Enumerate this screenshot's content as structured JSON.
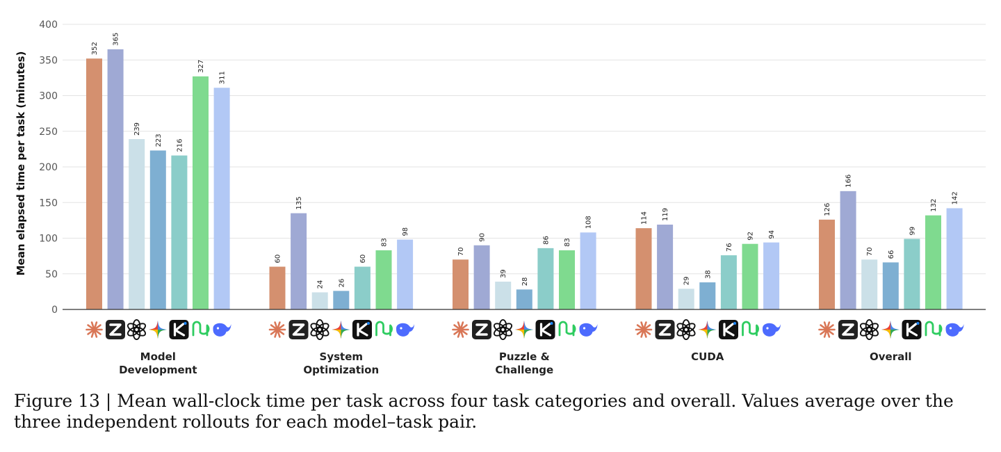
{
  "chart_data": {
    "type": "bar",
    "ylabel": "Mean elapsed time per task (minutes)",
    "ylim": [
      0,
      400
    ],
    "yticks": [
      0,
      50,
      100,
      150,
      200,
      250,
      300,
      350,
      400
    ],
    "grid": "horizontal",
    "categories": [
      [
        "Model",
        "Development"
      ],
      [
        "System",
        "Optimization"
      ],
      [
        "Puzzle &",
        "Challenge"
      ],
      [
        "CUDA"
      ],
      [
        "Overall"
      ]
    ],
    "series": [
      {
        "icon": "claude-icon",
        "color": "#d4906f",
        "values": [
          352,
          60,
          70,
          114,
          126
        ]
      },
      {
        "icon": "zhipu-z-icon",
        "color": "#9fa9d4",
        "values": [
          365,
          135,
          90,
          119,
          166
        ]
      },
      {
        "icon": "openai-icon",
        "color": "#cbe0e8",
        "values": [
          239,
          24,
          39,
          29,
          70
        ]
      },
      {
        "icon": "gemini-icon",
        "color": "#7eafd2",
        "values": [
          223,
          26,
          28,
          38,
          66
        ]
      },
      {
        "icon": "kimi-icon",
        "color": "#8bcdc9",
        "values": [
          216,
          60,
          86,
          76,
          99
        ]
      },
      {
        "icon": "minimax-icon",
        "color": "#7fda8f",
        "values": [
          327,
          83,
          83,
          92,
          132
        ]
      },
      {
        "icon": "deepseek-icon",
        "color": "#b2c8f5",
        "values": [
          311,
          98,
          108,
          94,
          142
        ]
      }
    ]
  },
  "caption": "Figure 13 | Mean wall-clock time per task across four task categories and overall. Values average over the three independent rollouts for each model–task pair."
}
